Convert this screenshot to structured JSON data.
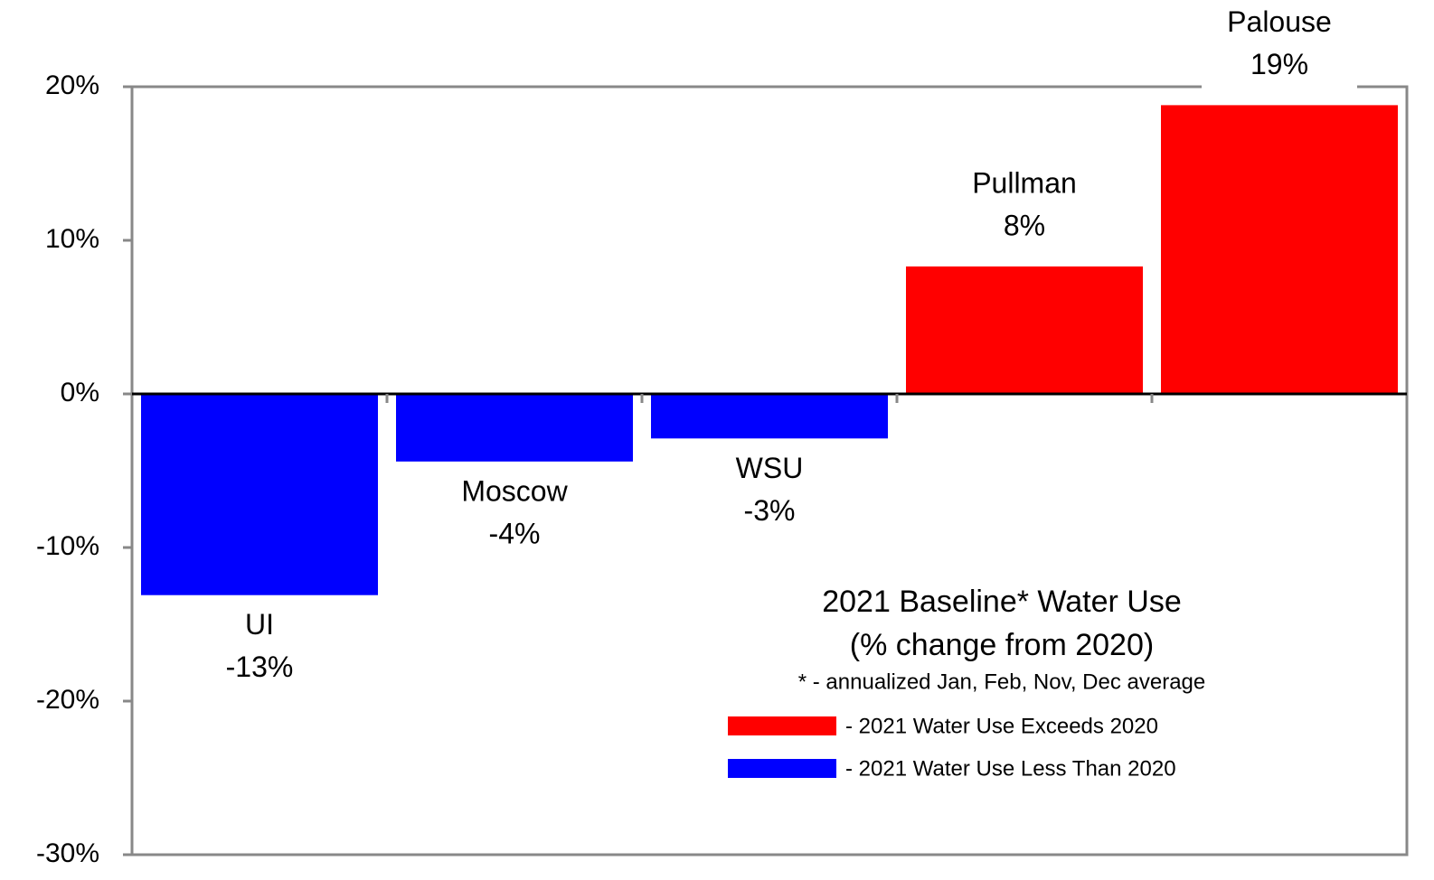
{
  "chart_data": {
    "type": "bar",
    "title": "2021 Baseline* Water Use",
    "subtitle": "(% change from 2020)",
    "note": "* - annualized Jan, Feb, Nov, Dec average",
    "categories": [
      "UI",
      "Moscow",
      "WSU",
      "Pullman",
      "Palouse"
    ],
    "values": [
      -13.1,
      -4.4,
      -2.9,
      8.3,
      18.8
    ],
    "value_labels": [
      "-13%",
      "-4%",
      "-3%",
      "8%",
      "19%"
    ],
    "colors": [
      "#0000ff",
      "#0000ff",
      "#0000ff",
      "#ff0000",
      "#ff0000"
    ],
    "legend": [
      {
        "name": "- 2021 Water Use Exceeds 2020",
        "color": "#ff0000"
      },
      {
        "name": "- 2021 Water Use Less Than 2020",
        "color": "#0000ff"
      }
    ],
    "ylim": [
      -30,
      20
    ],
    "yticks": [
      {
        "value": 20,
        "label": "20%"
      },
      {
        "value": 10,
        "label": "10%"
      },
      {
        "value": 0,
        "label": "0%"
      },
      {
        "value": -10,
        "label": "-10%"
      },
      {
        "value": -20,
        "label": "-20%"
      },
      {
        "value": -30,
        "label": "-30%"
      }
    ]
  }
}
